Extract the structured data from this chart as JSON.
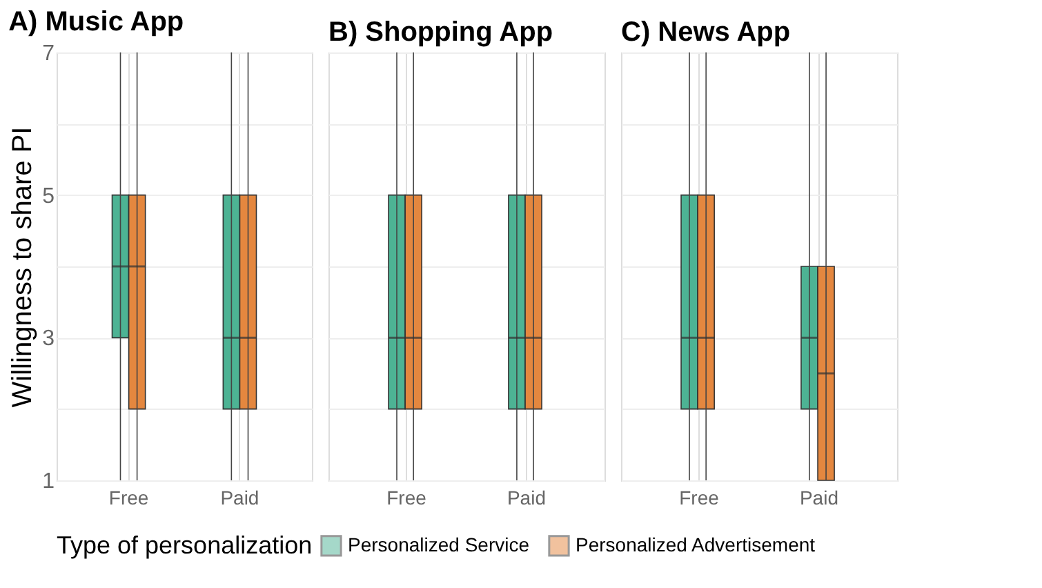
{
  "chart_data": [
    {
      "type": "box",
      "title": "A) Music App",
      "ylabel": "Willingness to share PI",
      "legend_title": "Type of personalization",
      "legend": "bottom",
      "grid": true,
      "categories": [
        "Free",
        "Paid"
      ],
      "ylim": [
        1,
        7
      ],
      "yticks": [
        1,
        {
          "value": 2,
          "label": null
        },
        3,
        {
          "value": 4,
          "label": null
        },
        5,
        {
          "value": 6,
          "label": null
        },
        7
      ],
      "series": [
        {
          "name": "Personalized Service",
          "color": "#4db394",
          "boxes": [
            {
              "low": 1,
              "q1": 3,
              "median": 4,
              "q3": 5,
              "high": 7
            },
            {
              "low": 1,
              "q1": 2,
              "median": 3,
              "q3": 5,
              "high": 7
            }
          ]
        },
        {
          "name": "Personalized Advertisement",
          "color": "#e4873f",
          "boxes": [
            {
              "low": 1,
              "q1": 2,
              "median": 4,
              "q3": 5,
              "high": 7
            },
            {
              "low": 1,
              "q1": 2,
              "median": 3,
              "q3": 5,
              "high": 7
            }
          ]
        }
      ]
    },
    {
      "type": "box",
      "title": "B) Shopping App",
      "tick_labels": "x",
      "legend": "bottom",
      "grid": true,
      "categories": [
        "Free",
        "Paid"
      ],
      "ylim": [
        1,
        7
      ],
      "yticks": [
        1,
        {
          "value": 2,
          "label": null
        },
        3,
        {
          "value": 4,
          "label": null
        },
        5,
        {
          "value": 6,
          "label": null
        },
        7
      ],
      "series": [
        {
          "name": "Personalized Service",
          "color": "#4db394",
          "boxes": [
            {
              "low": 1,
              "q1": 2,
              "median": 3,
              "q3": 5,
              "high": 7
            },
            {
              "low": 1,
              "q1": 2,
              "median": 3,
              "q3": 5,
              "high": 7
            }
          ]
        },
        {
          "name": "Personalized Advertisement",
          "color": "#e4873f",
          "boxes": [
            {
              "low": 1,
              "q1": 2,
              "median": 3,
              "q3": 5,
              "high": 7
            },
            {
              "low": 1,
              "q1": 2,
              "median": 3,
              "q3": 5,
              "high": 7
            }
          ]
        }
      ]
    },
    {
      "type": "box",
      "title": "C) News App",
      "tick_labels": "x",
      "legend": "bottom",
      "grid": true,
      "categories": [
        "Free",
        "Paid"
      ],
      "ylim": [
        1,
        7
      ],
      "yticks": [
        1,
        {
          "value": 2,
          "label": null
        },
        3,
        {
          "value": 4,
          "label": null
        },
        5,
        {
          "value": 6,
          "label": null
        },
        7
      ],
      "series": [
        {
          "name": "Personalized Service",
          "color": "#4db394",
          "boxes": [
            {
              "low": 1,
              "q1": 2,
              "median": 3,
              "q3": 5,
              "high": 7
            },
            {
              "low": 1,
              "q1": 2,
              "median": 3,
              "q3": 4,
              "high": 7
            }
          ]
        },
        {
          "name": "Personalized Advertisement",
          "color": "#e4873f",
          "boxes": [
            {
              "low": 1,
              "q1": 2,
              "median": 3,
              "q3": 5,
              "high": 7
            },
            {
              "low": 1,
              "q1": 1,
              "median": 2.5,
              "q3": 4,
              "high": 7
            }
          ]
        }
      ]
    }
  ]
}
